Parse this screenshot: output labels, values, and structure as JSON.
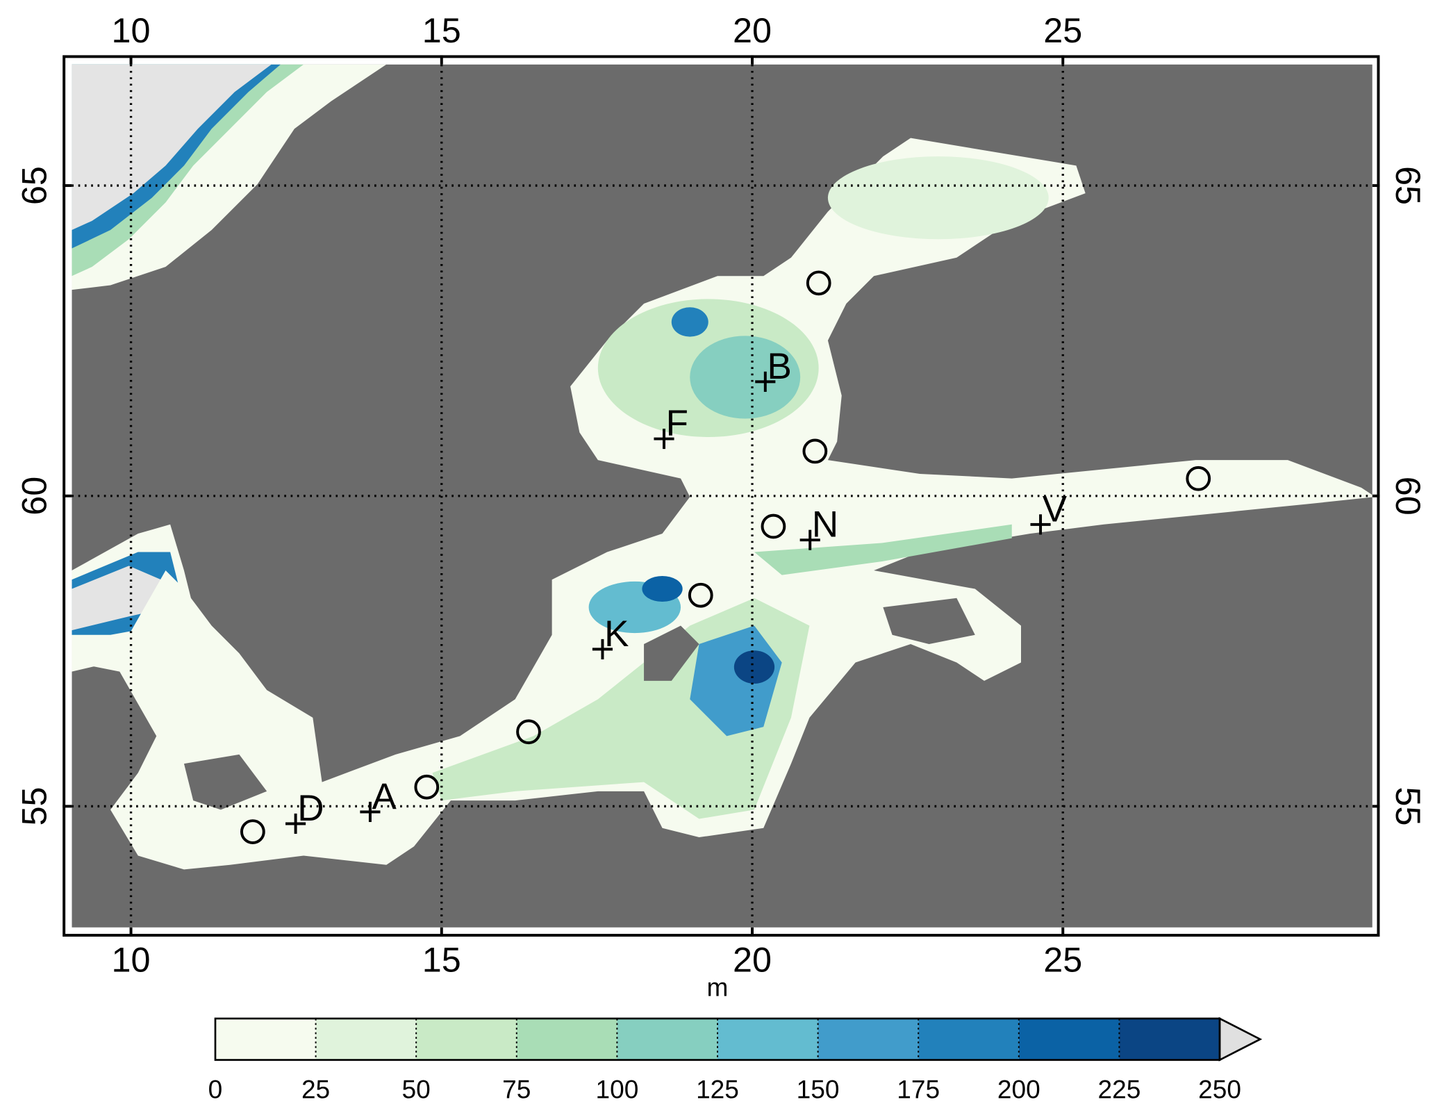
{
  "map": {
    "type": "contour-map",
    "xlim": [
      8.9,
      30.1
    ],
    "ylim": [
      52.9,
      67.1
    ],
    "xticks": [
      10,
      15,
      20,
      25
    ],
    "yticks": [
      55,
      60,
      65
    ],
    "grid": true,
    "stations": [
      {
        "label": "B",
        "lon": 20.21,
        "lat": 61.84
      },
      {
        "label": "F",
        "lon": 18.58,
        "lat": 60.92
      },
      {
        "label": "N",
        "lon": 20.93,
        "lat": 59.29
      },
      {
        "label": "V",
        "lon": 24.64,
        "lat": 59.54
      },
      {
        "label": "K",
        "lon": 17.59,
        "lat": 57.53
      },
      {
        "label": "D",
        "lon": 12.65,
        "lat": 54.72
      },
      {
        "label": "A",
        "lon": 13.85,
        "lat": 54.91
      }
    ],
    "circles": [
      {
        "lon": 21.07,
        "lat": 63.43
      },
      {
        "lon": 21.01,
        "lat": 60.72
      },
      {
        "lon": 27.18,
        "lat": 60.28
      },
      {
        "lon": 20.34,
        "lat": 59.51
      },
      {
        "lon": 19.17,
        "lat": 58.4
      },
      {
        "lon": 16.4,
        "lat": 56.2
      },
      {
        "lon": 14.76,
        "lat": 55.31
      },
      {
        "lon": 11.96,
        "lat": 54.59
      }
    ],
    "colorbar": {
      "label": "m",
      "levels": [
        0,
        25,
        50,
        75,
        100,
        125,
        150,
        175,
        200,
        225,
        250
      ],
      "colors": [
        "#f6fbef",
        "#e0f3dc",
        "#c9eac6",
        "#a9ddb6",
        "#86cfc0",
        "#63bcd0",
        "#419ccb",
        "#2281bb",
        "#0b62a5",
        "#0b4584"
      ],
      "over_color": "#e0e0e0"
    }
  }
}
